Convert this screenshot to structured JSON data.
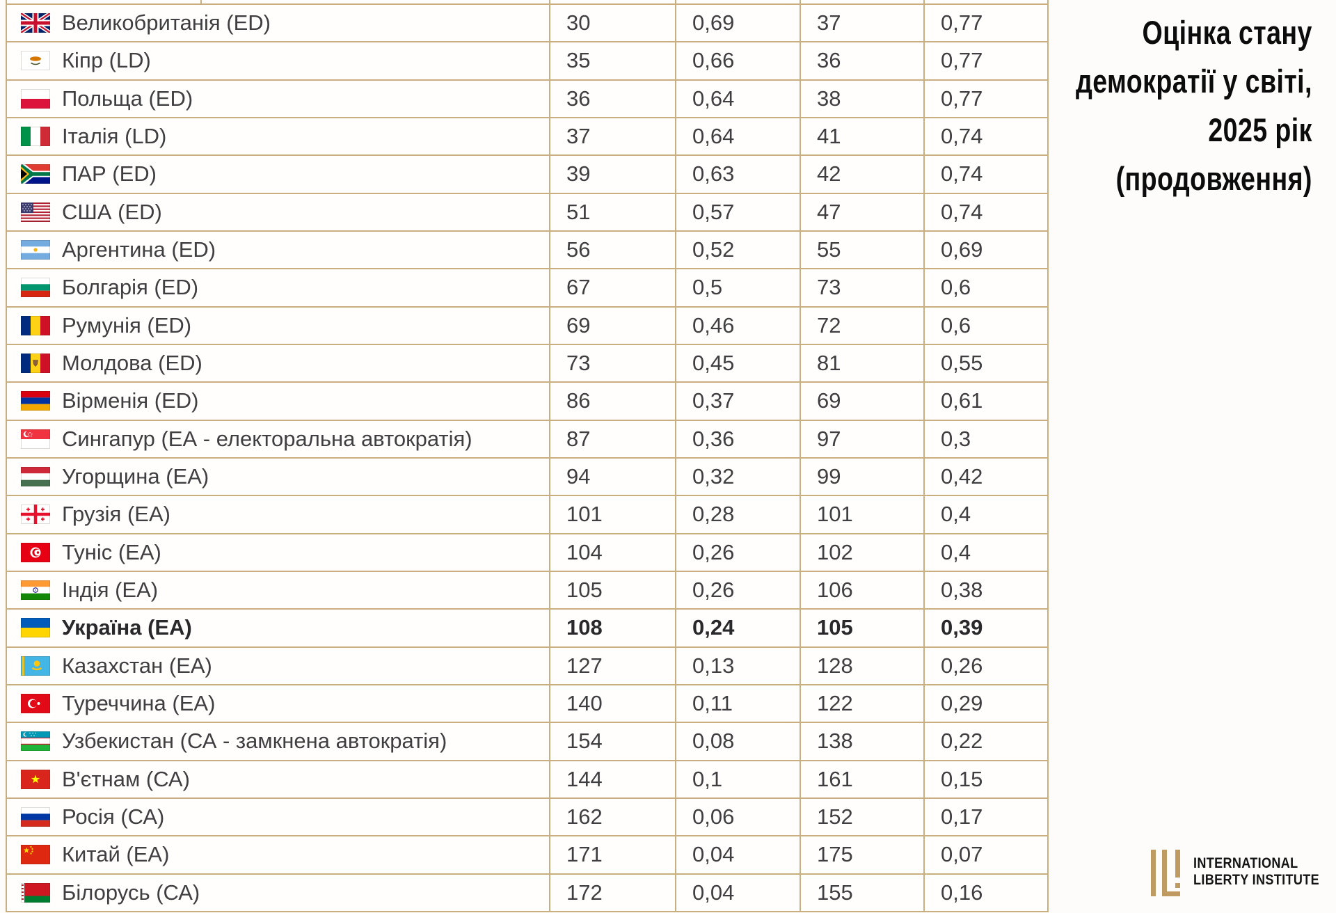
{
  "title": {
    "lines": [
      "Оцінка стану",
      "демократії у світі,",
      "2025 рік",
      "(продовження)"
    ]
  },
  "logo": {
    "line1": "INTERNATIONAL",
    "line2": "LIBERTY INSTITUTE",
    "mark_color": "#bf9b62"
  },
  "colors": {
    "table_border": "#c9ae80",
    "row_background": "#fffefc",
    "text": "#3f3f41",
    "title_text": "#0c0c0c"
  },
  "chart_data": {
    "type": "table",
    "title": "Оцінка стану демократії у світі, 2025 рік (продовження)",
    "rows": [
      {
        "flag": "united-kingdom",
        "country": "Великобританія (ED)",
        "values": [
          "30",
          "0,69",
          "37",
          "0,77"
        ],
        "bold": false
      },
      {
        "flag": "cyprus",
        "country": "Кіпр (LD)",
        "values": [
          "35",
          "0,66",
          "36",
          "0,77"
        ],
        "bold": false
      },
      {
        "flag": "poland",
        "country": "Польща (ED)",
        "values": [
          "36",
          "0,64",
          "38",
          "0,77"
        ],
        "bold": false
      },
      {
        "flag": "italy",
        "country": "Італія (LD)",
        "values": [
          "37",
          "0,64",
          "41",
          "0,74"
        ],
        "bold": false
      },
      {
        "flag": "south-africa",
        "country": "ПАР (ED)",
        "values": [
          "39",
          "0,63",
          "42",
          "0,74"
        ],
        "bold": false
      },
      {
        "flag": "usa",
        "country": "США (ED)",
        "values": [
          "51",
          "0,57",
          "47",
          "0,74"
        ],
        "bold": false
      },
      {
        "flag": "argentina",
        "country": "Аргентина (ED)",
        "values": [
          "56",
          "0,52",
          "55",
          "0,69"
        ],
        "bold": false
      },
      {
        "flag": "bulgaria",
        "country": "Болгарія (ED)",
        "values": [
          "67",
          "0,5",
          "73",
          "0,6"
        ],
        "bold": false
      },
      {
        "flag": "romania",
        "country": "Румунія (ED)",
        "values": [
          "69",
          "0,46",
          "72",
          "0,6"
        ],
        "bold": false
      },
      {
        "flag": "moldova",
        "country": "Молдова (ED)",
        "values": [
          "73",
          "0,45",
          "81",
          "0,55"
        ],
        "bold": false
      },
      {
        "flag": "armenia",
        "country": "Вірменія (ED)",
        "values": [
          "86",
          "0,37",
          "69",
          "0,61"
        ],
        "bold": false
      },
      {
        "flag": "singapore",
        "country": "Сингапур (ЕА - електоральна автократія)",
        "values": [
          "87",
          "0,36",
          "97",
          "0,3"
        ],
        "bold": false
      },
      {
        "flag": "hungary",
        "country": "Угорщина (ЕА)",
        "values": [
          "94",
          "0,32",
          "99",
          "0,42"
        ],
        "bold": false
      },
      {
        "flag": "georgia",
        "country": "Грузія (ЕА)",
        "values": [
          "101",
          "0,28",
          "101",
          "0,4"
        ],
        "bold": false
      },
      {
        "flag": "tunisia",
        "country": "Туніс (ЕА)",
        "values": [
          "104",
          "0,26",
          "102",
          "0,4"
        ],
        "bold": false
      },
      {
        "flag": "india",
        "country": "Індія (ЕА)",
        "values": [
          "105",
          "0,26",
          "106",
          "0,38"
        ],
        "bold": false
      },
      {
        "flag": "ukraine",
        "country": "Україна (ЕА)",
        "values": [
          "108",
          "0,24",
          "105",
          "0,39"
        ],
        "bold": true
      },
      {
        "flag": "kazakhstan",
        "country": "Казахстан (ЕА)",
        "values": [
          "127",
          "0,13",
          "128",
          "0,26"
        ],
        "bold": false
      },
      {
        "flag": "turkey",
        "country": "Туреччина (ЕА)",
        "values": [
          "140",
          "0,11",
          "122",
          "0,29"
        ],
        "bold": false
      },
      {
        "flag": "uzbekistan",
        "country": "Узбекистан (СА - замкнена автократія)",
        "values": [
          "154",
          "0,08",
          "138",
          "0,22"
        ],
        "bold": false
      },
      {
        "flag": "vietnam",
        "country": "В'єтнам (СА)",
        "values": [
          "144",
          "0,1",
          "161",
          "0,15"
        ],
        "bold": false
      },
      {
        "flag": "russia",
        "country": "Росія (СА)",
        "values": [
          "162",
          "0,06",
          "152",
          "0,17"
        ],
        "bold": false
      },
      {
        "flag": "china",
        "country": "Китай (ЕА)",
        "values": [
          "171",
          "0,04",
          "175",
          "0,07"
        ],
        "bold": false
      },
      {
        "flag": "belarus",
        "country": "Білорусь (СА)",
        "values": [
          "172",
          "0,04",
          "155",
          "0,16"
        ],
        "bold": false
      }
    ]
  }
}
